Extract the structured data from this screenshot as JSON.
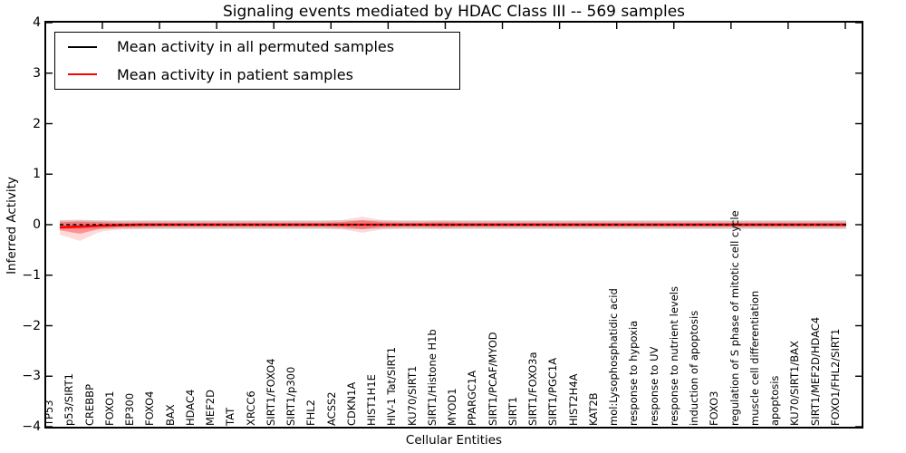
{
  "title": "Signaling events mediated by HDAC Class III -- 569 samples",
  "xlabel": "Cellular Entities",
  "ylabel": "Inferred Activity",
  "legend": {
    "items": [
      {
        "label": "Mean activity in all permuted samples",
        "color": "#000000"
      },
      {
        "label": "Mean activity in patient samples",
        "color": "#ff0000"
      }
    ]
  },
  "colors": {
    "patient_line": "#ff0000",
    "permuted_line": "#000000",
    "patient_band": "#ff4040",
    "permuted_band": "#909090",
    "axis": "#000000"
  },
  "chart_data": {
    "type": "line",
    "title": "Signaling events mediated by HDAC Class III -- 569 samples",
    "xlabel": "Cellular Entities",
    "ylabel": "Inferred Activity",
    "ylim": [
      -4,
      4
    ],
    "grid": false,
    "legend_position": "upper left",
    "yticks": {
      "values": [
        4,
        3,
        2,
        1,
        0,
        -1,
        -2,
        -3,
        -4
      ],
      "labels": [
        "4",
        "3",
        "2",
        "1",
        "0",
        "−1",
        "−2",
        "−3",
        "−4"
      ]
    },
    "categories": [
      "TP53",
      "p53/SIRT1",
      "CREBBP",
      "FOXO1",
      "EP300",
      "FOXO4",
      "BAX",
      "HDAC4",
      "MEF2D",
      "TAT",
      "XRCC6",
      "SIRT1/FOXO4",
      "SIRT1/p300",
      "FHL2",
      "ACSS2",
      "CDKN1A",
      "HIST1H1E",
      "HIV-1 Tat/SIRT1",
      "KU70/SIRT1",
      "SIRT1/Histone H1b",
      "MYOD1",
      "PPARGC1A",
      "SIRT1/PCAF/MYOD",
      "SIRT1",
      "SIRT1/FOXO3a",
      "SIRT1/PGC1A",
      "HIST2H4A",
      "KAT2B",
      "mol:Lysophosphatidic acid",
      "response to hypoxia",
      "response to UV",
      "response to nutrient levels",
      "induction of apoptosis",
      "FOXO3",
      "regulation of S phase of mitotic cell cycle",
      "muscle cell differentiation",
      "apoptosis",
      "KU70/SIRT1/BAX",
      "SIRT1/MEF2D/HDAC4",
      "FOXO1/FHL2/SIRT1"
    ],
    "series": [
      {
        "name": "Mean activity in all permuted samples",
        "color": "#000000",
        "style": "dashed",
        "width": 1.6,
        "values": [
          0,
          0,
          0,
          0,
          0,
          0,
          0,
          0,
          0,
          0,
          0,
          0,
          0,
          0,
          0,
          0,
          0,
          0,
          0,
          0,
          0,
          0,
          0,
          0,
          0,
          0,
          0,
          0,
          0,
          0,
          0,
          0,
          0,
          0,
          0,
          0,
          0,
          0,
          0,
          0
        ]
      },
      {
        "name": "Mean activity in patient samples",
        "color": "#ff0000",
        "style": "solid",
        "width": 2.6,
        "values": [
          -0.05,
          -0.04,
          -0.02,
          -0.01,
          0,
          0,
          0,
          0,
          0,
          0,
          0,
          0,
          0,
          0,
          0,
          0,
          0,
          0,
          0,
          0,
          0,
          0,
          0,
          0,
          0,
          0,
          0,
          0,
          0,
          0,
          0,
          0,
          0,
          0,
          0,
          0,
          0,
          0,
          0,
          0
        ]
      }
    ],
    "bands": [
      {
        "name": "permuted-std-band",
        "color": "#909090",
        "opacity": 0.35,
        "upper": 0.085,
        "lower": -0.085
      },
      {
        "name": "patient-std-band-outer",
        "color": "#ff3030",
        "opacity": 0.18,
        "upper": [
          0.09,
          0.1,
          0.08,
          0.07,
          0.07,
          0.07,
          0.07,
          0.07,
          0.07,
          0.07,
          0.07,
          0.07,
          0.07,
          0.07,
          0.09,
          0.16,
          0.09,
          0.07,
          0.07,
          0.08,
          0.07,
          0.07,
          0.07,
          0.07,
          0.07,
          0.07,
          0.07,
          0.07,
          0.07,
          0.07,
          0.07,
          0.07,
          0.07,
          0.07,
          0.07,
          0.07,
          0.07,
          0.07,
          0.07,
          0.07
        ],
        "lower": [
          -0.2,
          -0.32,
          -0.14,
          -0.09,
          -0.08,
          -0.07,
          -0.07,
          -0.07,
          -0.07,
          -0.07,
          -0.07,
          -0.07,
          -0.07,
          -0.07,
          -0.09,
          -0.16,
          -0.09,
          -0.07,
          -0.07,
          -0.08,
          -0.07,
          -0.07,
          -0.07,
          -0.07,
          -0.07,
          -0.07,
          -0.07,
          -0.07,
          -0.07,
          -0.07,
          -0.07,
          -0.07,
          -0.07,
          -0.07,
          -0.07,
          -0.07,
          -0.07,
          -0.07,
          -0.07,
          -0.07
        ]
      },
      {
        "name": "patient-std-band-inner",
        "color": "#ff2020",
        "opacity": 0.38,
        "upper": [
          0.05,
          0.06,
          0.05,
          0.04,
          0.04,
          0.04,
          0.04,
          0.04,
          0.04,
          0.04,
          0.04,
          0.04,
          0.04,
          0.04,
          0.05,
          0.09,
          0.05,
          0.04,
          0.04,
          0.05,
          0.04,
          0.04,
          0.04,
          0.04,
          0.04,
          0.04,
          0.04,
          0.04,
          0.04,
          0.04,
          0.04,
          0.04,
          0.04,
          0.04,
          0.04,
          0.04,
          0.04,
          0.04,
          0.04,
          0.04
        ],
        "lower": [
          -0.11,
          -0.18,
          -0.08,
          -0.05,
          -0.05,
          -0.04,
          -0.04,
          -0.04,
          -0.04,
          -0.04,
          -0.04,
          -0.04,
          -0.04,
          -0.04,
          -0.05,
          -0.09,
          -0.05,
          -0.04,
          -0.04,
          -0.05,
          -0.04,
          -0.04,
          -0.04,
          -0.04,
          -0.04,
          -0.04,
          -0.04,
          -0.04,
          -0.04,
          -0.04,
          -0.04,
          -0.04,
          -0.04,
          -0.04,
          -0.04,
          -0.04,
          -0.04,
          -0.04,
          -0.04,
          -0.04
        ]
      }
    ],
    "top_minor_ticks": 14
  }
}
